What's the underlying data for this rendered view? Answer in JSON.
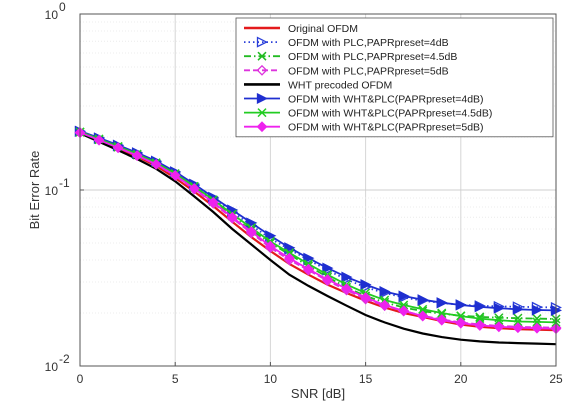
{
  "chart_data": {
    "type": "line",
    "xlabel": "SNR [dB]",
    "ylabel": "Bit Error Rate",
    "xlim": [
      0,
      25
    ],
    "ylim": [
      0.01,
      1
    ],
    "yscale": "log",
    "grid": true,
    "legend_position": "top-right",
    "x_ticks": [
      0,
      5,
      10,
      15,
      20,
      25
    ],
    "x_tick_labels": [
      "0",
      "5",
      "10",
      "15",
      "20",
      "25"
    ],
    "y_ticks": [
      0.01,
      0.1,
      1
    ],
    "y_tick_labels": [
      "10",
      "10",
      "10"
    ],
    "y_tick_exponents": [
      "-2",
      "-1",
      "0"
    ],
    "x": [
      0,
      1,
      2,
      3,
      4,
      5,
      6,
      7,
      8,
      9,
      10,
      11,
      12,
      13,
      14,
      15,
      16,
      17,
      18,
      19,
      20,
      21,
      22,
      23,
      24,
      25
    ],
    "series": [
      {
        "name": "Original OFDM",
        "color": "#e41a1c",
        "style": "solid",
        "marker": "none",
        "values": [
          0.21,
          0.19,
          0.172,
          0.155,
          0.137,
          0.117,
          0.098,
          0.081,
          0.066,
          0.054,
          0.045,
          0.038,
          0.033,
          0.029,
          0.026,
          0.0235,
          0.0215,
          0.02,
          0.019,
          0.018,
          0.0172,
          0.0167,
          0.0164,
          0.0162,
          0.0161,
          0.016
        ]
      },
      {
        "name": "OFDM with PLC,PAPRpreset=4dB",
        "color": "#2a3fd9",
        "style": "dotted",
        "marker": "triangle-right-open",
        "values": [
          0.215,
          0.196,
          0.178,
          0.161,
          0.144,
          0.125,
          0.106,
          0.089,
          0.075,
          0.063,
          0.053,
          0.046,
          0.04,
          0.035,
          0.031,
          0.028,
          0.026,
          0.0245,
          0.0235,
          0.0228,
          0.0223,
          0.022,
          0.0218,
          0.0217,
          0.0216,
          0.0215
        ]
      },
      {
        "name": "OFDM with PLC,PAPRpreset=4.5dB",
        "color": "#22bb22",
        "style": "dashdot",
        "marker": "x",
        "values": [
          0.213,
          0.193,
          0.175,
          0.158,
          0.141,
          0.122,
          0.103,
          0.086,
          0.071,
          0.059,
          0.05,
          0.043,
          0.037,
          0.032,
          0.028,
          0.025,
          0.023,
          0.0215,
          0.0205,
          0.0198,
          0.0193,
          0.019,
          0.0188,
          0.0187,
          0.0186,
          0.0185
        ]
      },
      {
        "name": "OFDM with PLC,PAPRpreset=5dB",
        "color": "#dd33dd",
        "style": "dashed",
        "marker": "diamond-open",
        "values": [
          0.212,
          0.192,
          0.174,
          0.157,
          0.14,
          0.12,
          0.101,
          0.084,
          0.069,
          0.057,
          0.047,
          0.04,
          0.035,
          0.0305,
          0.027,
          0.024,
          0.022,
          0.0205,
          0.0193,
          0.0184,
          0.0177,
          0.0172,
          0.0169,
          0.0167,
          0.0166,
          0.0165
        ]
      },
      {
        "name": "WHT precoded OFDM",
        "color": "#000000",
        "style": "solid",
        "marker": "none",
        "values": [
          0.21,
          0.188,
          0.168,
          0.15,
          0.132,
          0.112,
          0.092,
          0.075,
          0.06,
          0.049,
          0.04,
          0.033,
          0.0285,
          0.025,
          0.022,
          0.0195,
          0.0177,
          0.0163,
          0.0153,
          0.0146,
          0.0141,
          0.0138,
          0.0136,
          0.0135,
          0.0134,
          0.0133
        ]
      },
      {
        "name": "OFDM with WHT&PLC(PAPRpreset=4dB)",
        "color": "#1f2fd0",
        "style": "solid",
        "marker": "triangle-right-filled",
        "values": [
          0.216,
          0.198,
          0.18,
          0.163,
          0.146,
          0.127,
          0.108,
          0.091,
          0.077,
          0.065,
          0.055,
          0.047,
          0.041,
          0.036,
          0.032,
          0.029,
          0.0265,
          0.025,
          0.0238,
          0.0229,
          0.0222,
          0.0217,
          0.0213,
          0.021,
          0.0208,
          0.0207
        ]
      },
      {
        "name": "OFDM with WHT&PLC(PAPRpreset=4.5dB)",
        "color": "#22cc22",
        "style": "solid",
        "marker": "x",
        "values": [
          0.214,
          0.195,
          0.177,
          0.16,
          0.143,
          0.124,
          0.105,
          0.088,
          0.073,
          0.061,
          0.051,
          0.044,
          0.038,
          0.033,
          0.029,
          0.026,
          0.0237,
          0.0222,
          0.021,
          0.02,
          0.0192,
          0.0186,
          0.0182,
          0.0179,
          0.0178,
          0.0177
        ]
      },
      {
        "name": "OFDM with WHT&PLC(PAPRpreset=5dB)",
        "color": "#ee22ee",
        "style": "solid",
        "marker": "diamond-filled",
        "values": [
          0.212,
          0.192,
          0.174,
          0.157,
          0.14,
          0.121,
          0.102,
          0.085,
          0.07,
          0.058,
          0.048,
          0.041,
          0.0355,
          0.031,
          0.0275,
          0.0245,
          0.0222,
          0.0206,
          0.0192,
          0.0182,
          0.0175,
          0.017,
          0.0167,
          0.0165,
          0.0164,
          0.0163
        ]
      }
    ]
  }
}
